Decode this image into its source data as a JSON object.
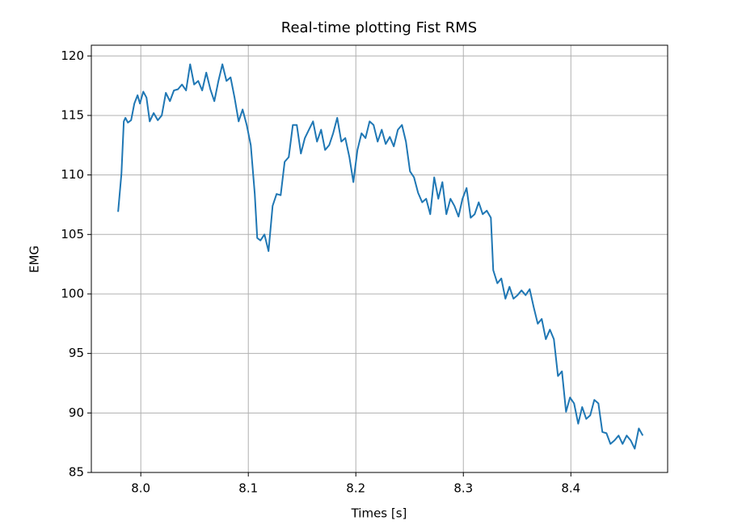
{
  "chart_data": {
    "type": "line",
    "title": "Real-time plotting Fist RMS",
    "xlabel": "Times [s]",
    "ylabel": "EMG",
    "xlim": [
      7.954,
      8.49
    ],
    "ylim": [
      85,
      120.9
    ],
    "xticks": [
      {
        "value": 8,
        "label": "8.0"
      },
      8.1,
      8.2,
      8.3,
      8.4
    ],
    "yticks": [
      85,
      90,
      95,
      100,
      105,
      110,
      115,
      120
    ],
    "grid": true,
    "series": [
      {
        "color": "#1f77b4",
        "x": [
          7.9789,
          7.982,
          7.9842,
          7.9857,
          7.988,
          7.991,
          7.994,
          7.997,
          7.9992,
          8.0023,
          8.0053,
          8.0083,
          8.012,
          8.0158,
          8.0195,
          8.0233,
          8.0271,
          8.0308,
          8.0346,
          8.0383,
          8.0421,
          8.0459,
          8.0496,
          8.0534,
          8.0571,
          8.0609,
          8.0647,
          8.0684,
          8.0722,
          8.0759,
          8.0797,
          8.0835,
          8.0872,
          8.091,
          8.0947,
          8.0985,
          8.1023,
          8.106,
          8.1083,
          8.1113,
          8.115,
          8.1188,
          8.1226,
          8.1263,
          8.1301,
          8.1338,
          8.1376,
          8.1414,
          8.1451,
          8.1489,
          8.1526,
          8.1564,
          8.1602,
          8.1639,
          8.1677,
          8.1714,
          8.1752,
          8.1789,
          8.1827,
          8.1865,
          8.1902,
          8.194,
          8.1977,
          8.2015,
          8.2053,
          8.209,
          8.2128,
          8.2165,
          8.2203,
          8.2241,
          8.2278,
          8.2316,
          8.2353,
          8.2391,
          8.2429,
          8.2466,
          8.2504,
          8.2541,
          8.2579,
          8.2617,
          8.2654,
          8.2692,
          8.2729,
          8.2767,
          8.2805,
          8.2842,
          8.288,
          8.2917,
          8.2955,
          8.2992,
          8.303,
          8.3068,
          8.3105,
          8.3143,
          8.318,
          8.3218,
          8.3256,
          8.3278,
          8.3316,
          8.3353,
          8.3391,
          8.3429,
          8.3466,
          8.3504,
          8.3541,
          8.3579,
          8.3617,
          8.3654,
          8.3692,
          8.3729,
          8.3767,
          8.3805,
          8.3842,
          8.388,
          8.3917,
          8.3955,
          8.3992,
          8.403,
          8.4068,
          8.4105,
          8.4143,
          8.418,
          8.4218,
          8.4256,
          8.4293,
          8.4331,
          8.4368,
          8.4406,
          8.4444,
          8.4481,
          8.4519,
          8.4556,
          8.4594,
          8.4632,
          8.4669
        ],
        "values": [
          106.9,
          110.1,
          114.5,
          114.8,
          114.4,
          114.6,
          116.0,
          116.7,
          116.0,
          117.0,
          116.5,
          114.5,
          115.2,
          114.6,
          115.0,
          116.9,
          116.2,
          117.1,
          117.2,
          117.6,
          117.1,
          119.3,
          117.6,
          117.9,
          117.1,
          118.6,
          117.2,
          116.2,
          117.9,
          119.3,
          117.9,
          118.2,
          116.5,
          114.5,
          115.5,
          114.2,
          112.5,
          108.4,
          104.7,
          104.5,
          105.0,
          103.6,
          107.4,
          108.4,
          108.3,
          111.1,
          111.5,
          114.2,
          114.2,
          111.8,
          113.1,
          113.8,
          114.5,
          112.8,
          113.8,
          112.1,
          112.5,
          113.5,
          114.8,
          112.8,
          113.1,
          111.5,
          109.4,
          112.1,
          113.5,
          113.1,
          114.5,
          114.2,
          112.8,
          113.8,
          112.6,
          113.2,
          112.4,
          113.8,
          114.2,
          112.8,
          110.3,
          109.8,
          108.5,
          107.7,
          108.0,
          106.7,
          109.8,
          108.0,
          109.4,
          106.7,
          108.0,
          107.4,
          106.5,
          108.0,
          108.9,
          106.4,
          106.7,
          107.7,
          106.7,
          107.0,
          106.4,
          102.0,
          100.9,
          101.3,
          99.6,
          100.6,
          99.6,
          99.9,
          100.3,
          99.9,
          100.4,
          98.9,
          97.5,
          97.9,
          96.2,
          97.0,
          96.2,
          93.1,
          93.5,
          90.1,
          91.3,
          90.8,
          89.1,
          90.5,
          89.5,
          89.8,
          91.1,
          90.8,
          88.4,
          88.3,
          87.4,
          87.7,
          88.1,
          87.4,
          88.1,
          87.7,
          87.0,
          88.7,
          88.1
        ]
      }
    ]
  }
}
